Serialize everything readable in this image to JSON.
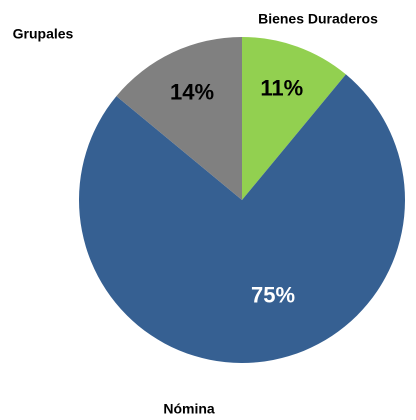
{
  "chart_data": {
    "type": "pie",
    "categories": [
      "Bienes Duraderos",
      "Nómina",
      "Grupales"
    ],
    "values": [
      11,
      75,
      14
    ],
    "value_labels": [
      "11%",
      "75%",
      "14%"
    ],
    "colors": [
      "#92d050",
      "#366092",
      "#808080"
    ]
  }
}
